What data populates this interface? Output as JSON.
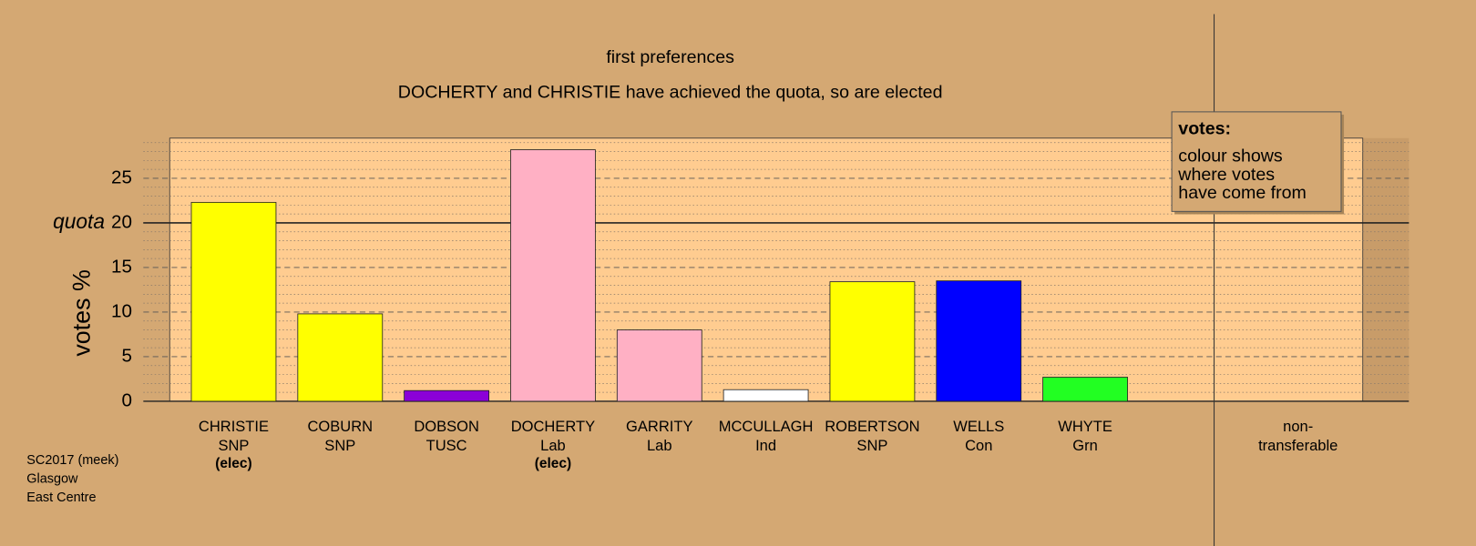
{
  "chart_data": {
    "type": "bar",
    "title": "first preferences",
    "subtitle": "DOCHERTY and CHRISTIE have achieved the quota, so are elected",
    "y_label": "votes %",
    "categories": [
      "CHRISTIE",
      "COBURN",
      "DOBSON",
      "DOCHERTY",
      "GARRITY",
      "MCCULLAGH",
      "ROBERTSON",
      "WELLS",
      "WHYTE"
    ],
    "parties": [
      "SNP",
      "SNP",
      "TUSC",
      "Lab",
      "Lab",
      "Ind",
      "SNP",
      "Con",
      "Grn"
    ],
    "status": [
      "(elec)",
      null,
      null,
      "(elec)",
      null,
      null,
      null,
      null,
      null
    ],
    "values": [
      22.3,
      9.8,
      1.2,
      28.2,
      8.0,
      1.3,
      13.4,
      13.5,
      2.7
    ],
    "colors": [
      "#ffff00",
      "#ffff00",
      "#8b00d8",
      "#ffb0c4",
      "#ffb0c4",
      "#ffffff",
      "#ffff00",
      "#0000ff",
      "#22ff22"
    ],
    "ylim": [
      0,
      29.5
    ],
    "yticks": [
      0,
      5,
      10,
      15,
      20,
      25
    ],
    "quota": 20,
    "quota_label": "quota",
    "non_transferable_label": [
      "non-",
      "transferable"
    ],
    "legend": {
      "title": "votes:",
      "lines": [
        "colour shows",
        "where votes",
        "have come from"
      ]
    },
    "footer": [
      "SC2017 (meek)",
      "Glasgow",
      "East Centre"
    ],
    "grid": true
  }
}
